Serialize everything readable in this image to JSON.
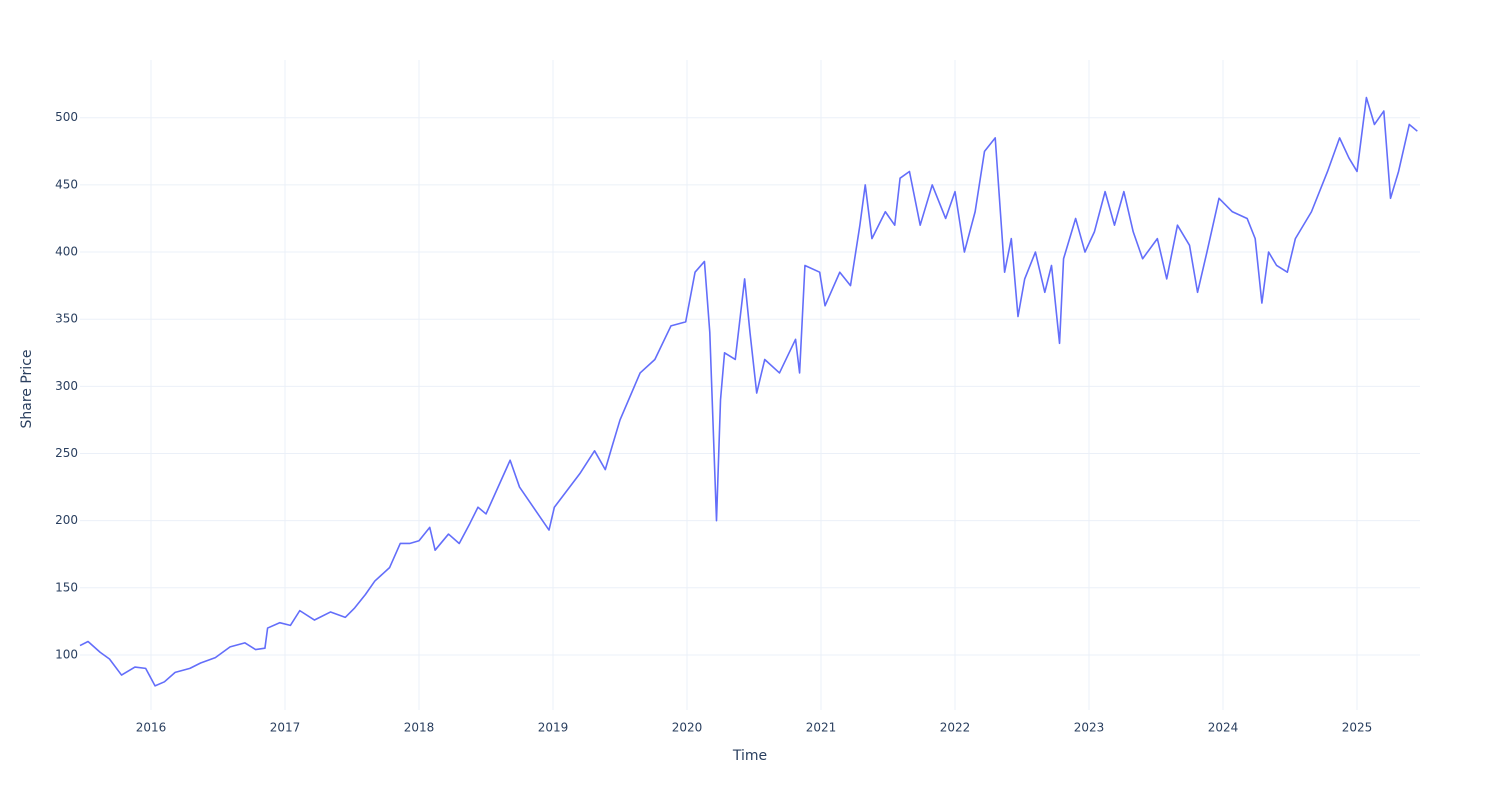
{
  "chart_data": {
    "type": "line",
    "x_label": "Time",
    "y_label": "Share Price",
    "xlim": [
      2015.47,
      2025.47
    ],
    "ylim": [
      59,
      543
    ],
    "xticks": [
      2016,
      2017,
      2018,
      2019,
      2020,
      2021,
      2022,
      2023,
      2024,
      2025
    ],
    "yticks": [
      100,
      150,
      200,
      250,
      300,
      350,
      400,
      450,
      500
    ],
    "grid": true,
    "x": [
      2015.47,
      2015.53,
      2015.62,
      2015.69,
      2015.78,
      2015.88,
      2015.96,
      2016.03,
      2016.1,
      2016.18,
      2016.29,
      2016.37,
      2016.48,
      2016.59,
      2016.7,
      2016.78,
      2016.85,
      2016.87,
      2016.96,
      2017.04,
      2017.11,
      2017.22,
      2017.34,
      2017.45,
      2017.52,
      2017.6,
      2017.67,
      2017.78,
      2017.86,
      2017.93,
      2018.0,
      2018.08,
      2018.12,
      2018.22,
      2018.3,
      2018.38,
      2018.44,
      2018.5,
      2018.68,
      2018.75,
      2018.97,
      2019.01,
      2019.2,
      2019.31,
      2019.39,
      2019.44,
      2019.5,
      2019.65,
      2019.76,
      2019.88,
      2019.99,
      2020.06,
      2020.13,
      2020.17,
      2020.22,
      2020.25,
      2020.28,
      2020.36,
      2020.43,
      2020.47,
      2020.52,
      2020.58,
      2020.69,
      2020.81,
      2020.84,
      2020.88,
      2020.99,
      2021.03,
      2021.14,
      2021.22,
      2021.29,
      2021.33,
      2021.38,
      2021.48,
      2021.55,
      2021.59,
      2021.66,
      2021.74,
      2021.83,
      2021.93,
      2022.0,
      2022.07,
      2022.15,
      2022.22,
      2022.3,
      2022.37,
      2022.42,
      2022.47,
      2022.52,
      2022.6,
      2022.67,
      2022.72,
      2022.78,
      2022.81,
      2022.9,
      2022.97,
      2023.04,
      2023.12,
      2023.19,
      2023.26,
      2023.33,
      2023.4,
      2023.51,
      2023.58,
      2023.66,
      2023.75,
      2023.81,
      2023.88,
      2023.97,
      2024.07,
      2024.18,
      2024.24,
      2024.29,
      2024.34,
      2024.4,
      2024.48,
      2024.54,
      2024.66,
      2024.78,
      2024.87,
      2024.94,
      2025.0,
      2025.07,
      2025.13,
      2025.2,
      2025.25,
      2025.31,
      2025.39,
      2025.45
    ],
    "series": [
      {
        "name": "Share Price",
        "color": "#636efa",
        "values": [
          107,
          110,
          102,
          97,
          85,
          91,
          90,
          77,
          80,
          87,
          90,
          94,
          98,
          106,
          109,
          104,
          105,
          120,
          124,
          122,
          133,
          126,
          132,
          128,
          135,
          145,
          155,
          165,
          183,
          183,
          185,
          195,
          178,
          190,
          183,
          198,
          210,
          205,
          245,
          225,
          193,
          210,
          235,
          252,
          238,
          255,
          275,
          310,
          320,
          345,
          348,
          385,
          393,
          340,
          200,
          290,
          325,
          320,
          380,
          340,
          295,
          320,
          310,
          335,
          310,
          390,
          385,
          360,
          385,
          375,
          420,
          450,
          410,
          430,
          420,
          455,
          460,
          420,
          450,
          425,
          445,
          400,
          430,
          475,
          485,
          385,
          410,
          352,
          380,
          400,
          370,
          390,
          332,
          395,
          425,
          400,
          415,
          445,
          420,
          445,
          415,
          395,
          410,
          380,
          420,
          405,
          370,
          400,
          440,
          430,
          425,
          410,
          362,
          400,
          390,
          385,
          410,
          430,
          460,
          485,
          470,
          460,
          515,
          495,
          505,
          440,
          460,
          495,
          490
        ]
      }
    ]
  }
}
